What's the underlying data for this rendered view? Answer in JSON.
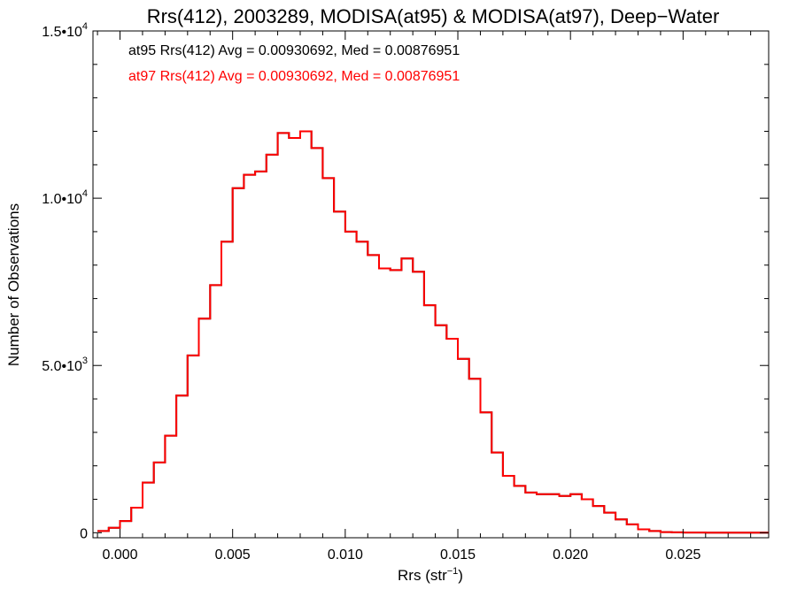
{
  "chart_data": {
    "type": "line",
    "title": "Rrs(412), 2003289, MODISA(at95) & MODISA(at97), Deep−Water",
    "xlabel": "Rrs (str",
    "xlabel_sup": "−1",
    "xlabel_end": ")",
    "ylabel": "Number of Observations",
    "xlim": [
      -0.0012,
      0.0288
    ],
    "ylim": [
      -150,
      15000
    ],
    "x_ticks": [
      {
        "value": 0.0,
        "label": "0.000"
      },
      {
        "value": 0.005,
        "label": "0.005"
      },
      {
        "value": 0.01,
        "label": "0.010"
      },
      {
        "value": 0.015,
        "label": "0.015"
      },
      {
        "value": 0.02,
        "label": "0.020"
      },
      {
        "value": 0.025,
        "label": "0.025"
      }
    ],
    "y_ticks": [
      {
        "value": 0,
        "label": "0",
        "sup": ""
      },
      {
        "value": 5000,
        "label": "5.0•10",
        "sup": "3"
      },
      {
        "value": 10000,
        "label": "1.0•10",
        "sup": "4"
      },
      {
        "value": 15000,
        "label": "1.5•10",
        "sup": "4"
      }
    ],
    "grid": false,
    "legend_position": "top-left",
    "series": [
      {
        "name": "at95 Rrs(412) Avg = 0.00930692, Med = 0.00876951",
        "color": "#000000",
        "x": [
          -0.001,
          -0.0005,
          0.0,
          0.0005,
          0.001,
          0.0015,
          0.002,
          0.0025,
          0.003,
          0.0035,
          0.004,
          0.0045,
          0.005,
          0.0055,
          0.006,
          0.0065,
          0.007,
          0.0075,
          0.008,
          0.0085,
          0.009,
          0.0095,
          0.01,
          0.0105,
          0.011,
          0.0115,
          0.012,
          0.0125,
          0.013,
          0.0135,
          0.014,
          0.0145,
          0.015,
          0.0155,
          0.016,
          0.0165,
          0.017,
          0.0175,
          0.018,
          0.0185,
          0.019,
          0.0195,
          0.02,
          0.0205,
          0.021,
          0.0215,
          0.022,
          0.0225,
          0.023,
          0.0235,
          0.024,
          0.0245,
          0.025,
          0.026,
          0.027,
          0.028,
          0.0288
        ],
        "y": [
          50,
          150,
          350,
          750,
          1500,
          2100,
          2900,
          4100,
          5300,
          6400,
          7400,
          8700,
          10300,
          10700,
          10800,
          11300,
          11950,
          11800,
          12000,
          11500,
          10600,
          9600,
          9000,
          8700,
          8300,
          7900,
          7850,
          8200,
          7800,
          6800,
          6200,
          5800,
          5200,
          4600,
          3600,
          2400,
          1700,
          1400,
          1200,
          1150,
          1150,
          1100,
          1150,
          1000,
          800,
          600,
          400,
          250,
          100,
          50,
          20,
          10,
          5,
          0,
          0,
          0,
          0
        ]
      },
      {
        "name": "at97 Rrs(412) Avg = 0.00930692, Med = 0.00876951",
        "color": "#ff0000",
        "x": [
          -0.001,
          -0.0005,
          0.0,
          0.0005,
          0.001,
          0.0015,
          0.002,
          0.0025,
          0.003,
          0.0035,
          0.004,
          0.0045,
          0.005,
          0.0055,
          0.006,
          0.0065,
          0.007,
          0.0075,
          0.008,
          0.0085,
          0.009,
          0.0095,
          0.01,
          0.0105,
          0.011,
          0.0115,
          0.012,
          0.0125,
          0.013,
          0.0135,
          0.014,
          0.0145,
          0.015,
          0.0155,
          0.016,
          0.0165,
          0.017,
          0.0175,
          0.018,
          0.0185,
          0.019,
          0.0195,
          0.02,
          0.0205,
          0.021,
          0.0215,
          0.022,
          0.0225,
          0.023,
          0.0235,
          0.024,
          0.0245,
          0.025,
          0.026,
          0.027,
          0.028,
          0.0288
        ],
        "y": [
          50,
          150,
          350,
          750,
          1500,
          2100,
          2900,
          4100,
          5300,
          6400,
          7400,
          8700,
          10300,
          10700,
          10800,
          11300,
          11950,
          11800,
          12000,
          11500,
          10600,
          9600,
          9000,
          8700,
          8300,
          7900,
          7850,
          8200,
          7800,
          6800,
          6200,
          5800,
          5200,
          4600,
          3600,
          2400,
          1700,
          1400,
          1200,
          1150,
          1150,
          1100,
          1150,
          1000,
          800,
          600,
          400,
          250,
          100,
          50,
          20,
          10,
          5,
          0,
          0,
          0,
          0
        ]
      }
    ]
  }
}
